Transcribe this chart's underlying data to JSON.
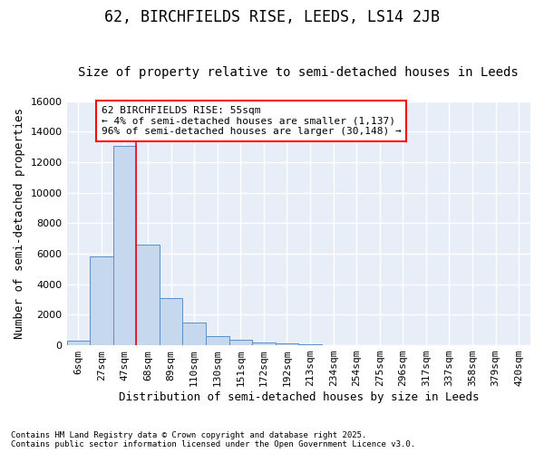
{
  "title": "62, BIRCHFIELDS RISE, LEEDS, LS14 2JB",
  "subtitle": "Size of property relative to semi-detached houses in Leeds",
  "xlabel": "Distribution of semi-detached houses by size in Leeds",
  "ylabel": "Number of semi-detached properties",
  "bar_labels": [
    "6sqm",
    "27sqm",
    "47sqm",
    "68sqm",
    "89sqm",
    "110sqm",
    "130sqm",
    "151sqm",
    "172sqm",
    "192sqm",
    "213sqm",
    "234sqm",
    "254sqm",
    "275sqm",
    "296sqm",
    "317sqm",
    "337sqm",
    "358sqm",
    "379sqm",
    "420sqm"
  ],
  "bar_values": [
    280,
    5800,
    13100,
    6600,
    3100,
    1500,
    600,
    380,
    200,
    100,
    50,
    10,
    5,
    2,
    0,
    0,
    0,
    0,
    0,
    0
  ],
  "bar_color": "#c5d8ed",
  "bar_edgecolor": "#5b8fc9",
  "vline_x": 2.5,
  "vline_color": "red",
  "ylim": [
    0,
    16000
  ],
  "yticks": [
    0,
    2000,
    4000,
    6000,
    8000,
    10000,
    12000,
    14000,
    16000
  ],
  "annotation_title": "62 BIRCHFIELDS RISE: 55sqm",
  "annotation_line1": "← 4% of semi-detached houses are smaller (1,137)",
  "annotation_line2": "96% of semi-detached houses are larger (30,148) →",
  "annotation_box_color": "red",
  "footer_line1": "Contains HM Land Registry data © Crown copyright and database right 2025.",
  "footer_line2": "Contains public sector information licensed under the Open Government Licence v3.0.",
  "fig_bg_color": "#ffffff",
  "plot_bg_color": "#e8eef8",
  "grid_color": "#ffffff",
  "title_fontsize": 12,
  "subtitle_fontsize": 10,
  "ylabel_fontsize": 9,
  "xlabel_fontsize": 9,
  "tick_fontsize": 8,
  "ann_fontsize": 8
}
